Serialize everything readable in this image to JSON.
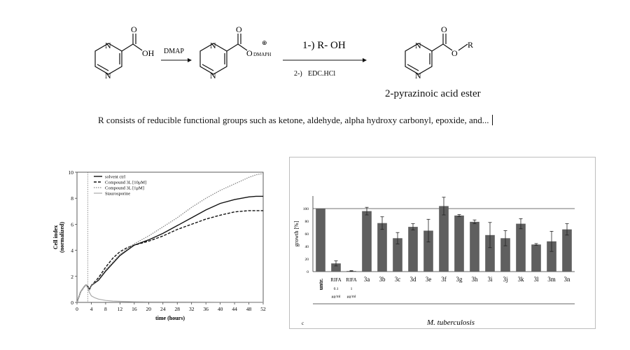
{
  "scheme": {
    "reagent1": "DMAP",
    "step1": "1-) R- OH",
    "step2": "2-)",
    "reagent2": "EDC.HCl",
    "anion_counter": "DMAPH",
    "charge": "⊕",
    "product_name": "2-pyrazinoic acid ester",
    "caption": "R consists of reducible functional groups such as ketone, aldehyde, alpha hydroxy carbonyl, epoxide, and...",
    "atoms": {
      "N": "N",
      "O": "O",
      "OH": "OH",
      "R": "R"
    }
  },
  "chart_data": [
    {
      "type": "line",
      "xlabel": "time (hours)",
      "ylabel": "Cell index (normalized)",
      "ylabel_line1": "Cell index",
      "ylabel_line2": "(normalized)",
      "xlim": [
        0,
        52
      ],
      "ylim": [
        0,
        10
      ],
      "xticks": [
        0,
        4,
        8,
        12,
        16,
        20,
        24,
        28,
        32,
        36,
        40,
        44,
        48,
        52
      ],
      "yticks": [
        0,
        2,
        4,
        6,
        8,
        10
      ],
      "legend": "top-left",
      "vline_x": 3,
      "series": [
        {
          "name": "solvent ctrl",
          "style": "solid",
          "x": [
            0,
            1,
            2,
            2.5,
            3,
            3.5,
            4,
            6,
            8,
            10,
            12,
            14,
            16,
            20,
            24,
            28,
            32,
            36,
            40,
            44,
            48,
            50,
            52
          ],
          "y": [
            0,
            0.8,
            1.2,
            1.35,
            1.25,
            1.0,
            1.3,
            1.7,
            2.4,
            3.0,
            3.6,
            4.0,
            4.4,
            4.8,
            5.3,
            5.9,
            6.5,
            7.1,
            7.6,
            7.9,
            8.1,
            8.15,
            8.15
          ]
        },
        {
          "name": "Compound 3L [10μM]",
          "style": "dashed",
          "x": [
            0,
            1,
            2,
            2.5,
            3,
            3.5,
            4,
            6,
            8,
            10,
            12,
            14,
            16,
            20,
            24,
            28,
            32,
            36,
            40,
            44,
            48,
            50,
            52
          ],
          "y": [
            0,
            0.8,
            1.2,
            1.35,
            1.25,
            1.0,
            1.3,
            1.9,
            2.7,
            3.4,
            3.9,
            4.2,
            4.4,
            4.7,
            5.1,
            5.6,
            6.0,
            6.4,
            6.7,
            6.95,
            7.05,
            7.05,
            7.05
          ]
        },
        {
          "name": "Compound 3L [1μM]",
          "style": "dotted",
          "x": [
            0,
            1,
            2,
            2.5,
            3,
            3.5,
            4,
            6,
            8,
            10,
            12,
            14,
            16,
            20,
            24,
            28,
            32,
            36,
            40,
            44,
            48,
            50,
            52
          ],
          "y": [
            0,
            0.8,
            1.2,
            1.35,
            1.25,
            1.0,
            1.3,
            1.8,
            2.5,
            3.1,
            3.7,
            4.1,
            4.5,
            5.1,
            5.8,
            6.5,
            7.3,
            8.0,
            8.6,
            9.1,
            9.6,
            9.8,
            9.9
          ]
        },
        {
          "name": "Staurosporine",
          "style": "solid-gray",
          "x": [
            0,
            1,
            2,
            2.5,
            3,
            3.5,
            4,
            5,
            6,
            8,
            10,
            12,
            16,
            20,
            30,
            40,
            52
          ],
          "y": [
            0,
            0.8,
            1.2,
            1.35,
            1.1,
            0.75,
            0.5,
            0.35,
            0.25,
            0.15,
            0.1,
            0.08,
            0.05,
            0.04,
            0.03,
            0.02,
            0.02
          ]
        }
      ]
    },
    {
      "type": "bar",
      "ylabel": "growth [%]",
      "xlabel": "M. tuberculosis",
      "ylim": [
        0,
        120
      ],
      "yticks": [
        0,
        20,
        40,
        60,
        80,
        100
      ],
      "reference_line": 100,
      "categories": [
        "untr.",
        "RIFA",
        "RIFA",
        "3a",
        "3b",
        "3c",
        "3d",
        "3e",
        "3f",
        "3g",
        "3h",
        "3i",
        "3j",
        "3k",
        "3l",
        "3m",
        "3n"
      ],
      "sublabels": [
        "",
        "0.1 μg/ml",
        "1 μg/ml",
        "",
        "",
        "",
        "",
        "",
        "",
        "",
        "",
        "",
        "",
        "",
        "",
        "",
        ""
      ],
      "values": [
        100,
        13,
        1,
        96,
        77,
        53,
        71,
        65,
        104,
        89,
        79,
        58,
        53,
        76,
        43,
        48,
        67
      ],
      "errors": [
        0,
        4,
        0.5,
        6,
        10,
        9,
        5,
        18,
        14,
        1.5,
        3,
        20,
        12,
        8,
        1.5,
        16,
        9
      ],
      "corner_mark": "c"
    }
  ]
}
